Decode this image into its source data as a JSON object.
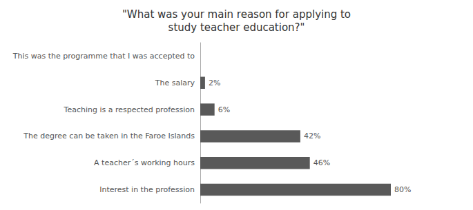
{
  "chart_data": {
    "type": "bar",
    "orientation": "horizontal",
    "title": "\"What was your main reason for applying to\nstudy teacher education?\"",
    "categories": [
      "This was the programme that I was accepted to",
      "The salary",
      "Teaching is a respected profession",
      "The degree can be taken in the Faroe Islands",
      "A teacher´s working hours",
      "Interest in the profession"
    ],
    "values": [
      0,
      2,
      6,
      42,
      46,
      80
    ],
    "value_labels": [
      null,
      "2%",
      "6%",
      "42%",
      "46%",
      "80%"
    ],
    "data_labels": true,
    "color": "#595959",
    "xlim": [
      0,
      100
    ],
    "tick_labels": "y",
    "grid": false
  }
}
